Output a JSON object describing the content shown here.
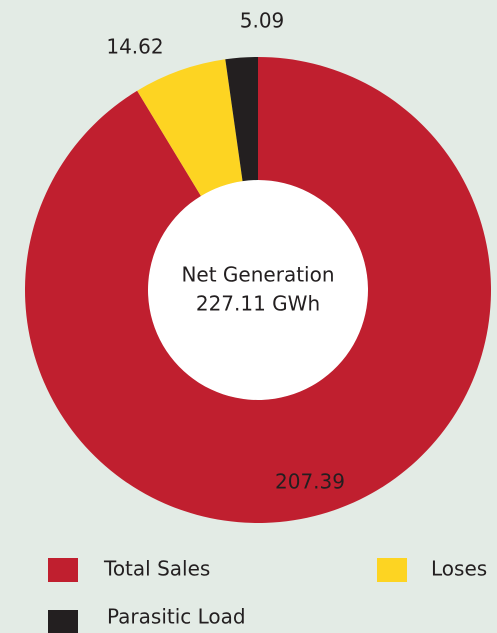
{
  "chart_data": {
    "type": "donut",
    "categories": [
      "Total Sales",
      "Loses",
      "Parasitic Load"
    ],
    "values": [
      207.39,
      14.62,
      5.09
    ],
    "colors": [
      "#c01f2f",
      "#fdd422",
      "#231f20"
    ],
    "center_text": [
      "Net Generation",
      "227.11 GWh"
    ]
  }
}
